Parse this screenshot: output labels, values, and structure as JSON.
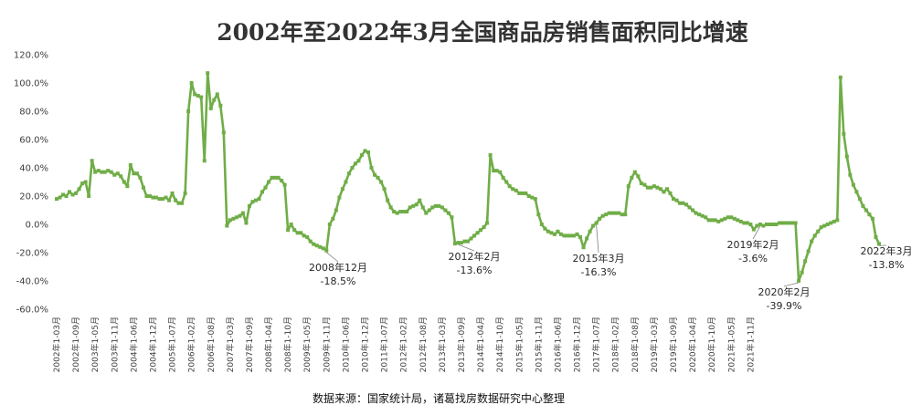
{
  "chart_data": {
    "type": "line",
    "title": "2002年至2022年3月全国商品房销售面积同比增速",
    "source": "数据来源：国家统计局，诸葛找房数据研究中心整理",
    "xlabel": "",
    "ylabel": "",
    "ylim": [
      -60,
      120
    ],
    "y_ticks": [
      120,
      100,
      80,
      60,
      40,
      20,
      0,
      -20,
      -40,
      -60
    ],
    "y_tick_labels": [
      "120.0%",
      "100.0%",
      "80.0%",
      "60.0%",
      "40.0%",
      "20.0%",
      "0.0%",
      "-20.0%",
      "-40.0%",
      "-60.0%"
    ],
    "x_tick_labels": [
      "2002年1-03月",
      "2002年1-09月",
      "2003年1-05月",
      "2003年1-11月",
      "2004年1-06月",
      "2004年1-12月",
      "2005年1-07月",
      "2006年1-02月",
      "2006年1-08月",
      "2007年1-03月",
      "2007年1-09月",
      "2008年1-04月",
      "2008年1-10月",
      "2009年1-05月",
      "2009年1-11月",
      "2010年1-06月",
      "2010年1-12月",
      "2011年1-07月",
      "2012年1-02月",
      "2012年1-08月",
      "2013年1-03月",
      "2013年1-09月",
      "2014年1-04月",
      "2014年1-10月",
      "2015年1-05月",
      "2015年1-11月",
      "2016年1-06月",
      "2016年1-12月",
      "2017年1-07月",
      "2018年1-02月",
      "2018年1-08月",
      "2019年1-03月",
      "2019年1-09月",
      "2020年1-04月",
      "2020年1-10月",
      "2021年1-05月",
      "2021年1-11月"
    ],
    "grid": false,
    "series_color": "#70AD47",
    "series": [
      {
        "values": [
          18,
          19,
          21,
          20,
          23,
          21,
          22,
          25,
          29,
          30,
          20,
          45,
          37,
          38,
          37,
          37,
          38,
          37,
          35,
          36,
          34,
          30,
          27,
          42,
          36,
          36,
          33,
          26,
          20,
          20,
          19,
          19,
          18,
          18,
          19,
          17,
          22,
          17,
          15,
          15,
          22,
          80,
          100,
          92,
          91,
          90,
          45,
          107,
          82,
          88,
          92,
          84,
          65,
          -1,
          3,
          4,
          5,
          6,
          8,
          1,
          13,
          16,
          17,
          18,
          23,
          26,
          30,
          33,
          33,
          33,
          31,
          28,
          -4,
          0,
          -4,
          -6,
          -6,
          -8,
          -9,
          -12,
          -14,
          -15,
          -16,
          -17,
          -18.5,
          0,
          4,
          10,
          19,
          25,
          30,
          36,
          40,
          43,
          45,
          49,
          52,
          51,
          40,
          35,
          33,
          30,
          25,
          17,
          12,
          9,
          8,
          9,
          9,
          9,
          12,
          13,
          14,
          17,
          12,
          8,
          10,
          12,
          13,
          13,
          12,
          10,
          8,
          5,
          -13.6,
          -13,
          -13,
          -12,
          -12,
          -10,
          -8,
          -6,
          -4,
          -2,
          1,
          49,
          38,
          38,
          37,
          33,
          30,
          27,
          25,
          24,
          22,
          22,
          22,
          20,
          19,
          18,
          7,
          0,
          -3,
          -5,
          -6,
          -7,
          -5,
          -7,
          -8,
          -8,
          -8,
          -8,
          -7,
          -9,
          -16.3,
          -10,
          -5,
          -1,
          1,
          4,
          6,
          7,
          8,
          8,
          8,
          8,
          7,
          7,
          27,
          33,
          37,
          34,
          29,
          28,
          26,
          26,
          27,
          26,
          25,
          23,
          25,
          22,
          18,
          17,
          15,
          15,
          14,
          12,
          10,
          8,
          7,
          6,
          5,
          3,
          3,
          3,
          2,
          3,
          4,
          5,
          5,
          4,
          3,
          2,
          1,
          1,
          0,
          -3.6,
          -1,
          0,
          -1,
          0,
          0,
          0,
          0,
          1,
          1,
          1,
          1,
          1,
          1,
          -39.9,
          -34,
          -26,
          -19,
          -12,
          -8,
          -5,
          -2,
          -1,
          0,
          1,
          2,
          3,
          104,
          64,
          48,
          35,
          28,
          23,
          18,
          13,
          10,
          7,
          4,
          -9,
          -13.8
        ]
      }
    ],
    "annotations": [
      {
        "date": "2008年12月",
        "value": "-18.5%"
      },
      {
        "date": "2012年2月",
        "value": "-13.6%"
      },
      {
        "date": "2015年3月",
        "value": "-16.3%"
      },
      {
        "date": "2019年2月",
        "value": "-3.6%"
      },
      {
        "date": "2020年2月",
        "value": "-39.9%"
      },
      {
        "date": "2022年3月",
        "value": "-13.8%"
      }
    ]
  }
}
